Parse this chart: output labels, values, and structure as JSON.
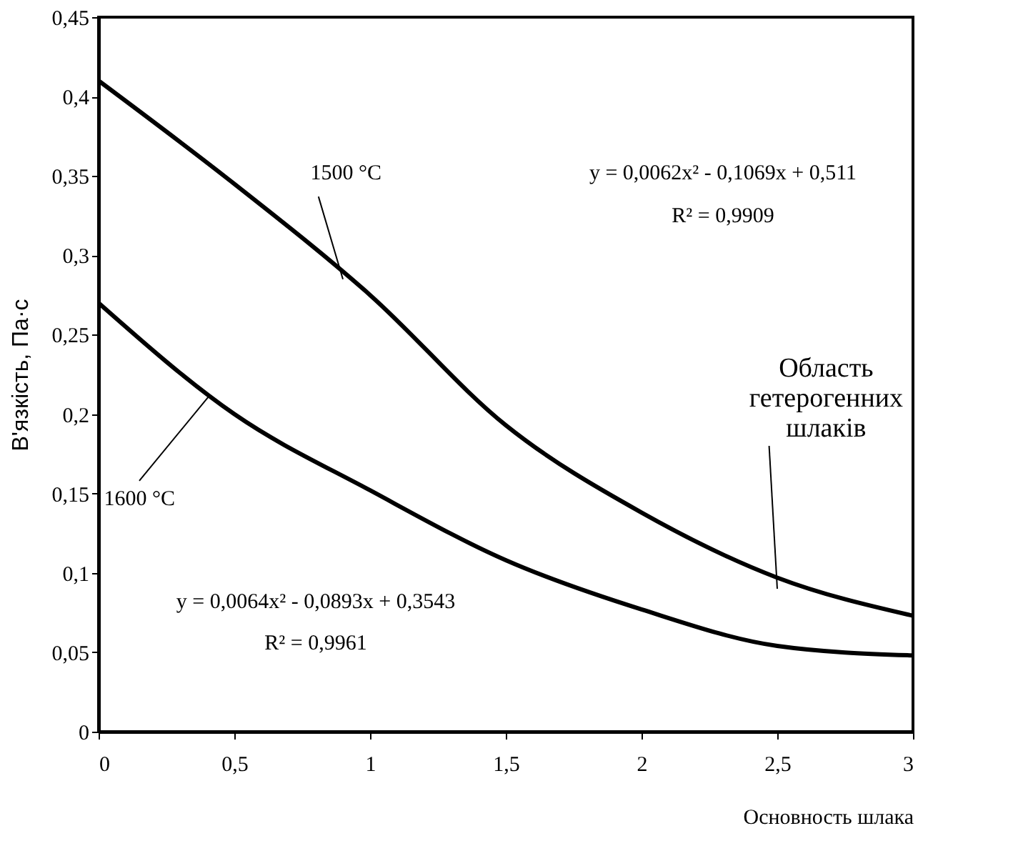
{
  "chart_data": {
    "type": "line",
    "ylabel": "В'язкість, Па·с",
    "xlabel": "Основность шлака",
    "x": [
      0,
      0.5,
      1,
      1.5,
      2,
      2.5,
      3
    ],
    "series": [
      {
        "color": "#000000",
        "values": [
          0.41,
          0.345,
          0.275,
          0.193,
          0.138,
          0.097,
          0.073
        ]
      },
      {
        "color": "#000000",
        "values": [
          0.27,
          0.2,
          0.152,
          0.108,
          0.077,
          0.054,
          0.048
        ]
      }
    ],
    "xlim": [
      0,
      3
    ],
    "ylim": [
      0,
      0.45
    ],
    "xticks": [
      {
        "value": 0,
        "label": "0"
      },
      {
        "value": 0.5,
        "label": "0,5"
      },
      {
        "value": 1,
        "label": "1"
      },
      {
        "value": 1.5,
        "label": "1,5"
      },
      {
        "value": 2,
        "label": "2"
      },
      {
        "value": 2.5,
        "label": "2,5"
      },
      {
        "value": 3,
        "label": "3"
      }
    ],
    "yticks": [
      {
        "value": 0,
        "label": "0"
      },
      {
        "value": 0.05,
        "label": "0,05"
      },
      {
        "value": 0.1,
        "label": "0,1"
      },
      {
        "value": 0.15,
        "label": "0,15"
      },
      {
        "value": 0.2,
        "label": "0,2"
      },
      {
        "value": 0.25,
        "label": "0,25"
      },
      {
        "value": 0.3,
        "label": "0,3"
      },
      {
        "value": 0.35,
        "label": "0,35"
      },
      {
        "value": 0.4,
        "label": "0,4"
      },
      {
        "value": 0.45,
        "label": "0,45"
      }
    ],
    "annotations": [
      {
        "text": "1500 °C",
        "x": 0.9,
        "y": 0.285
      },
      "y = 0,0062x² - 0,1069x + 0,511",
      "R² = 0,9909",
      {
        "text": "1600 °C",
        "x": 0.41,
        "y": 0.212
      },
      "y = 0,0064x² - 0,0893x + 0,3543",
      "R² = 0,9961",
      "Область гетерогенних шлаків"
    ],
    "grid": false,
    "marker": "none",
    "line_style": "solid"
  }
}
